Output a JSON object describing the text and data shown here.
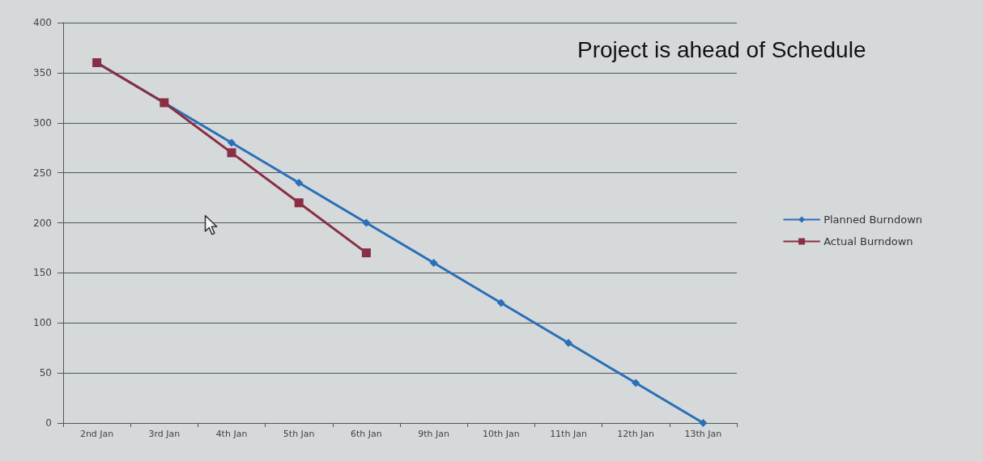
{
  "chart_data": {
    "type": "line",
    "title": "Project is ahead of Schedule",
    "categories": [
      "2nd Jan",
      "3rd Jan",
      "4th Jan",
      "5th Jan",
      "6th Jan",
      "9th Jan",
      "10th Jan",
      "11th Jan",
      "12th Jan",
      "13th Jan"
    ],
    "series": [
      {
        "name": "Planned Burndown",
        "color": "#2a6fb8",
        "marker": "diamond",
        "values": [
          360,
          320,
          280,
          240,
          200,
          160,
          120,
          80,
          40,
          0
        ]
      },
      {
        "name": "Actual Burndown",
        "color": "#8a2e45",
        "marker": "square",
        "values": [
          360,
          320,
          270,
          220,
          170,
          null,
          null,
          null,
          null,
          null
        ]
      }
    ],
    "ylim": [
      0,
      400
    ],
    "yticks": [
      0,
      50,
      100,
      150,
      200,
      250,
      300,
      350,
      400
    ],
    "grid": "y",
    "legend": "right",
    "line_style": "solid"
  }
}
